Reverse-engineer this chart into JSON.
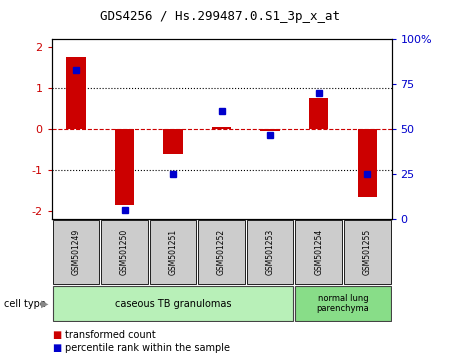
{
  "title": "GDS4256 / Hs.299487.0.S1_3p_x_at",
  "samples": [
    "GSM501249",
    "GSM501250",
    "GSM501251",
    "GSM501252",
    "GSM501253",
    "GSM501254",
    "GSM501255"
  ],
  "bar_values": [
    1.75,
    -1.85,
    -0.6,
    0.05,
    -0.05,
    0.75,
    -1.65
  ],
  "dot_pct_values": [
    83,
    5,
    25,
    60,
    47,
    70,
    25
  ],
  "bar_color": "#cc0000",
  "dot_color": "#0000cc",
  "ylim": [
    -2.2,
    2.2
  ],
  "y2lim": [
    0,
    100
  ],
  "yticks_left": [
    -2,
    -1,
    0,
    1,
    2
  ],
  "yticks_right": [
    0,
    25,
    50,
    75,
    100
  ],
  "dotted_line_color": "#000000",
  "red_dashed_color": "#cc0000",
  "cell_type_label": "cell type",
  "group1_label": "caseous TB granulomas",
  "group2_label": "normal lung\nparenchyma",
  "group1_color": "#b8f0b8",
  "group2_color": "#88dd88",
  "sample_box_color": "#cccccc",
  "legend_red_label": "transformed count",
  "legend_blue_label": "percentile rank within the sample",
  "background_color": "#ffffff",
  "plot_bg_color": "#ffffff",
  "bar_width": 0.4
}
